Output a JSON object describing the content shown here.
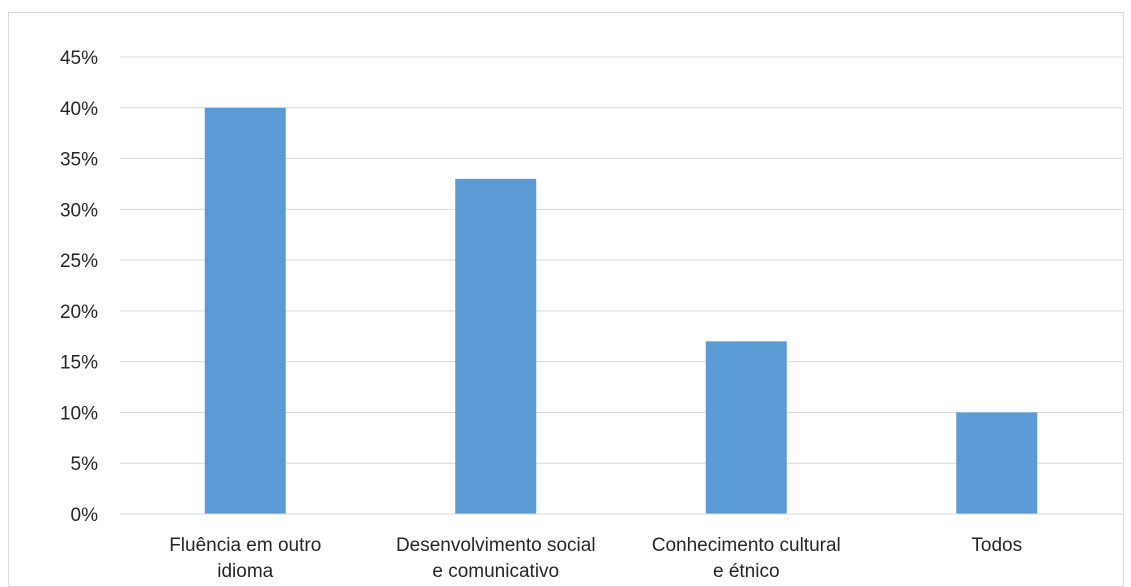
{
  "chart_data": {
    "type": "bar",
    "categories": [
      [
        "Fluência em outro",
        "idioma"
      ],
      [
        "Desenvolvimento social",
        "e comunicativo"
      ],
      [
        "Conhecimento cultural",
        "e étnico"
      ],
      [
        "Todos"
      ]
    ],
    "values": [
      40,
      33,
      17,
      10
    ],
    "y_ticks": [
      "0%",
      "5%",
      "10%",
      "15%",
      "20%",
      "25%",
      "30%",
      "35%",
      "40%",
      "45%"
    ],
    "ylim": [
      0,
      45
    ],
    "y_unit": "%",
    "grid": true,
    "legend": "none",
    "bar_color": "#5b9bd5",
    "grid_color": "#d9d9d9",
    "text_color": "#262626"
  }
}
